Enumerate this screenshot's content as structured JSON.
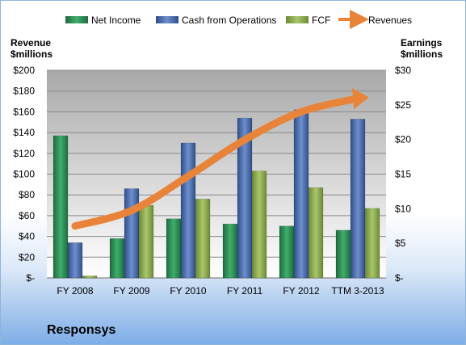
{
  "chart_data": {
    "type": "bar",
    "company": "Responsys",
    "categories": [
      "FY 2008",
      "FY 2009",
      "FY 2010",
      "FY 2011",
      "FY 2012",
      "TTM 3-2013"
    ],
    "left_axis": {
      "title_line1": "Revenue",
      "title_line2": "$millions",
      "range": [
        0,
        200
      ],
      "ticks": [
        "$-",
        "$20",
        "$40",
        "$60",
        "$80",
        "$100",
        "$120",
        "$140",
        "$160",
        "$180",
        "$200"
      ]
    },
    "right_axis": {
      "title_line1": "Earnings",
      "title_line2": "$millions",
      "range": [
        0,
        30
      ],
      "ticks": [
        "$-",
        "$5",
        "$10",
        "$15",
        "$20",
        "$25",
        "$30"
      ]
    },
    "series": [
      {
        "name": "Net Income",
        "axis": "left",
        "color": "#2e8b57",
        "values": [
          137,
          38,
          57,
          52,
          50,
          46
        ]
      },
      {
        "name": "Cash from Operations",
        "axis": "left",
        "color": "#4a6fb0",
        "values": [
          34,
          86,
          130,
          154,
          162,
          153
        ]
      },
      {
        "name": "FCF",
        "axis": "left",
        "color": "#8fac50",
        "values": [
          2,
          70,
          76,
          103,
          87,
          67
        ]
      },
      {
        "name": "Revenues",
        "type": "line",
        "axis": "left",
        "color": "#e8843a",
        "values": [
          50,
          65,
          98,
          133,
          160,
          173
        ]
      }
    ],
    "legend_position": "top",
    "grid": true
  }
}
